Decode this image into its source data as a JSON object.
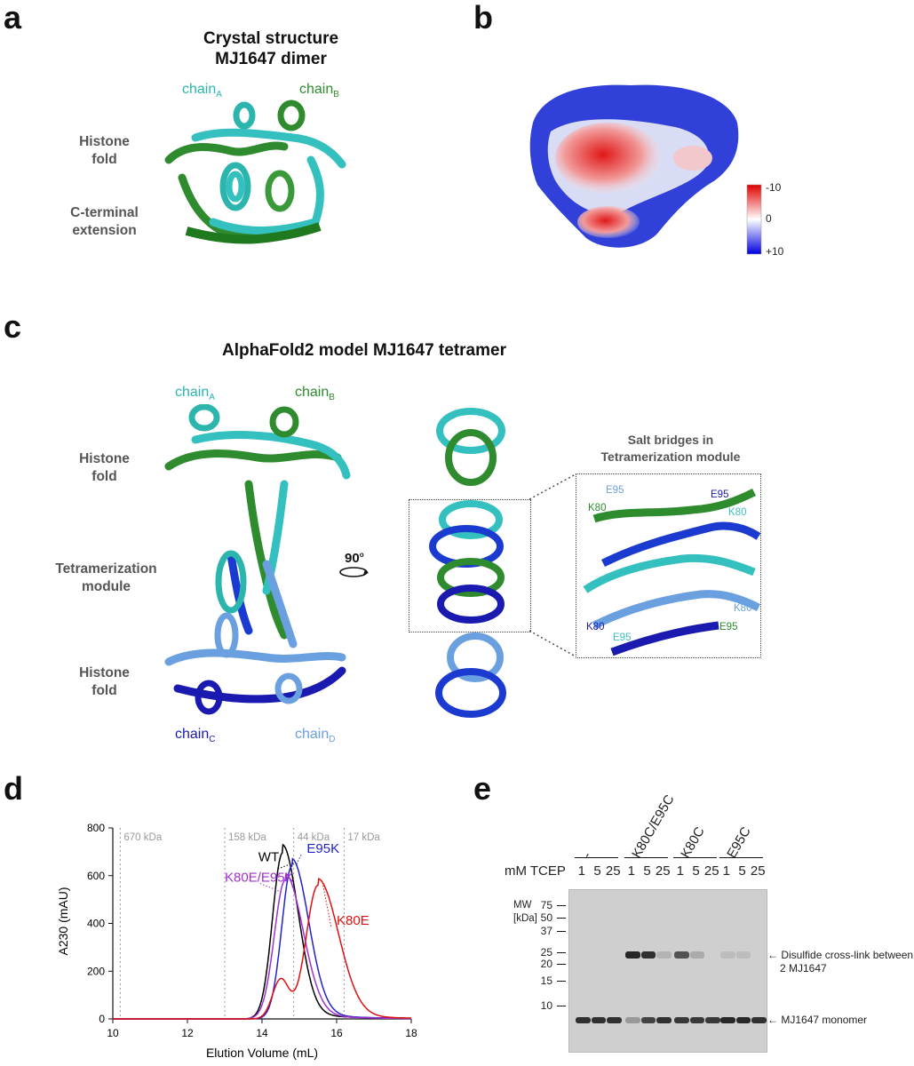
{
  "panels": {
    "a": {
      "letter": "a",
      "title_line1": "Crystal structure",
      "title_line2": "MJ1647 dimer",
      "chain_a": "chain",
      "chain_a_sub": "A",
      "chain_b": "chain",
      "chain_b_sub": "B",
      "label_histone_1": "Histone",
      "label_histone_2": "fold",
      "label_cterm_1": "C-terminal",
      "label_cterm_2": "extension"
    },
    "b": {
      "letter": "b",
      "scale_top": "-10",
      "scale_mid": "0",
      "scale_bottom": "+10"
    },
    "c": {
      "letter": "c",
      "title": "AlphaFold2 model MJ1647 tetramer",
      "chain_a": "chain",
      "chain_a_sub": "A",
      "chain_b": "chain",
      "chain_b_sub": "B",
      "chain_c": "chain",
      "chain_c_sub": "C",
      "chain_d": "chain",
      "chain_d_sub": "D",
      "label_histone_top_1": "Histone",
      "label_histone_top_2": "fold",
      "label_tetra_1": "Tetramerization",
      "label_tetra_2": "module",
      "label_histone_bottom_1": "Histone",
      "label_histone_bottom_2": "fold",
      "rotation": "90",
      "rotation_deg": "o",
      "inset_title_1": "Salt bridges in",
      "inset_title_2": "Tetramerization module",
      "residues": [
        {
          "text": "E95",
          "color": "#6aa0e0"
        },
        {
          "text": "K80",
          "color": "#2e8b2e"
        },
        {
          "text": "E95",
          "color": "#1a1ab0"
        },
        {
          "text": "K80",
          "color": "#3cc0c0"
        },
        {
          "text": "K80",
          "color": "#6aa0e0"
        },
        {
          "text": "K80",
          "color": "#1a1ab0"
        },
        {
          "text": "E95",
          "color": "#3cc0c0"
        },
        {
          "text": "E95",
          "color": "#2e8b2e"
        }
      ]
    },
    "d": {
      "letter": "d",
      "chart_data": {
        "type": "line",
        "xlabel": "Elution Volume (mL)",
        "ylabel": "A230 (mAU)",
        "xlim": [
          10,
          18
        ],
        "ylim": [
          0,
          800
        ],
        "x_ticks": [
          "10",
          "12",
          "14",
          "16",
          "18"
        ],
        "y_ticks": [
          "0",
          "200",
          "400",
          "600",
          "800"
        ],
        "markers": [
          {
            "x": 10.2,
            "label": "670 kDa"
          },
          {
            "x": 13.0,
            "label": "158 kDa"
          },
          {
            "x": 14.85,
            "label": "44 kDa"
          },
          {
            "x": 16.2,
            "label": "17 kDa"
          }
        ],
        "series": [
          {
            "name": "WT",
            "color": "#000000",
            "peak_x": 14.55,
            "peak_y": 695,
            "sigma_left": 0.27,
            "sigma_right": 0.42,
            "label_x": 13.9,
            "label_y": 660
          },
          {
            "name": "E95K",
            "color": "#2222cc",
            "peak_x": 14.8,
            "peak_y": 640,
            "sigma_left": 0.27,
            "sigma_right": 0.45,
            "label_x": 15.2,
            "label_y": 695
          },
          {
            "name": "K80E/E95K",
            "color": "#a030d0",
            "peak_x": 14.62,
            "peak_y": 580,
            "sigma_left": 0.29,
            "sigma_right": 0.48,
            "label_x": 13.0,
            "label_y": 575
          },
          {
            "name": "K80E",
            "color": "#dd1111",
            "peak_x": 15.5,
            "peak_y": 560,
            "sigma_left": 0.32,
            "sigma_right": 0.55,
            "shoulder_x": 14.5,
            "shoulder_y": 165,
            "label_x": 16.0,
            "label_y": 395
          }
        ]
      }
    },
    "e": {
      "letter": "e",
      "tcep_label": "mM TCEP",
      "groups": [
        "-",
        "K80C/E95C",
        "K80C",
        "E95C"
      ],
      "lanes": [
        "1",
        "5",
        "25",
        "1",
        "5",
        "25",
        "1",
        "5",
        "25",
        "1",
        "5",
        "25"
      ],
      "mw_title_1": "MW",
      "mw_title_2": "[kDa]",
      "mw_markers": [
        "75",
        "50",
        "37",
        "25",
        "20",
        "15",
        "10"
      ],
      "annotation_crosslink_1": "Disulfide cross-link between",
      "annotation_crosslink_2": "2 MJ1647",
      "annotation_monomer": "MJ1647 monomer",
      "arrow": "←"
    }
  }
}
